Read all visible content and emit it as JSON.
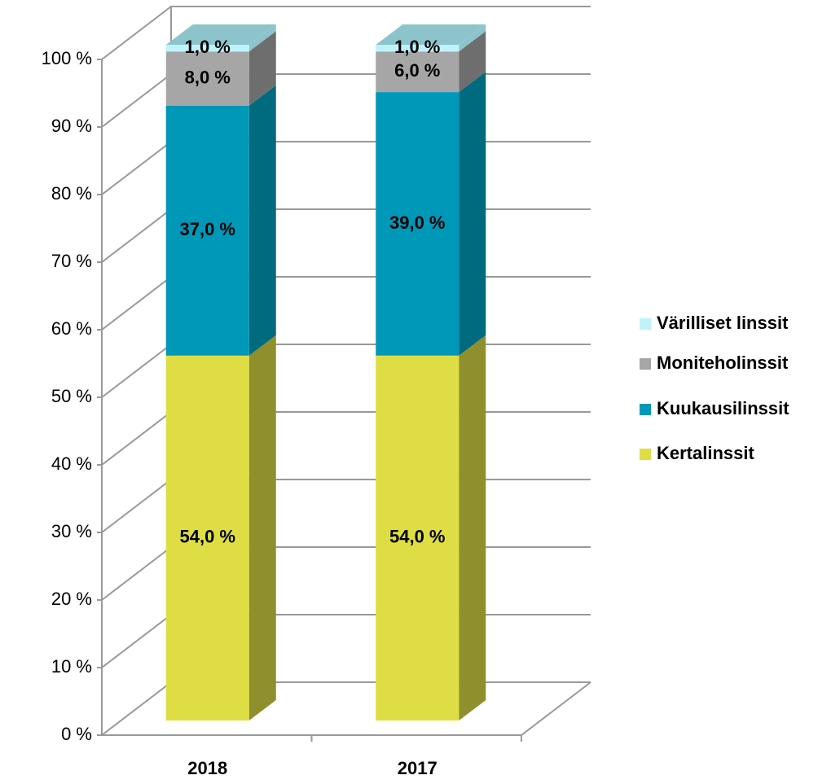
{
  "chart_data": {
    "type": "bar3d_stacked",
    "categories": [
      "2018",
      "2017"
    ],
    "series": [
      {
        "name": "Kertalinssit",
        "color": "#dede44",
        "side": "#8f8f2e",
        "values": [
          54,
          54
        ],
        "value_labels": [
          "54,0 %",
          "54,0 %"
        ]
      },
      {
        "name": "Kuukausilinssit",
        "color": "#0098b8",
        "side": "#006a7f",
        "values": [
          37,
          39
        ],
        "value_labels": [
          "37,0 %",
          "39,0 %"
        ]
      },
      {
        "name": "Moniteholinssit",
        "color": "#a6a6a6",
        "side": "#6e6e6e",
        "values": [
          8,
          6
        ],
        "value_labels": [
          "8,0 %",
          "6,0 %"
        ]
      },
      {
        "name": "Värilliset linssit",
        "color": "#bff2fb",
        "side": "#8dc4cc",
        "values": [
          1,
          1
        ],
        "value_labels": [
          "1,0 %",
          "1,0 %"
        ]
      }
    ],
    "ylim": [
      0,
      100
    ],
    "yticks": [
      {
        "value": 0,
        "label": "0 %"
      },
      {
        "value": 10,
        "label": "10 %"
      },
      {
        "value": 20,
        "label": "20 %"
      },
      {
        "value": 30,
        "label": "30 %"
      },
      {
        "value": 40,
        "label": "40 %"
      },
      {
        "value": 50,
        "label": "50 %"
      },
      {
        "value": 60,
        "label": "60 %"
      },
      {
        "value": 70,
        "label": "70 %"
      },
      {
        "value": 80,
        "label": "80 %"
      },
      {
        "value": 90,
        "label": "90 %"
      },
      {
        "value": 100,
        "label": "100 %"
      }
    ],
    "grid": true,
    "legend": "right"
  }
}
